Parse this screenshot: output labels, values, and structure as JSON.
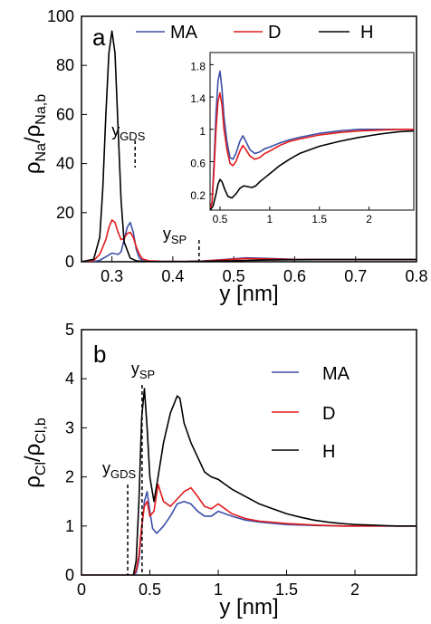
{
  "colors": {
    "MA": "#3b4ea6",
    "D": "#e31a1c",
    "H": "#000000"
  },
  "chart_data": [
    {
      "type": "line",
      "panel_label": "a",
      "xlabel": "y [nm]",
      "ylabel_main": "ρ",
      "ylabel_sub_num": "Na",
      "ylabel_sep": "/",
      "ylabel_sub_den": "Na,b",
      "xlim": [
        0.25,
        0.8
      ],
      "ylim": [
        0,
        100
      ],
      "xticks": [
        0.3,
        0.4,
        0.5,
        0.6,
        0.7,
        0.8
      ],
      "xtick_labels": [
        "0.3",
        "0.4",
        "0.5",
        "0.6",
        "0.7",
        "0.8"
      ],
      "yticks": [
        0,
        20,
        40,
        60,
        80,
        100
      ],
      "ytick_labels": [
        "0",
        "20",
        "40",
        "60",
        "80",
        "100"
      ],
      "legend": {
        "placement": "top",
        "entries": [
          "MA",
          "D",
          "H"
        ]
      },
      "annotations": [
        {
          "main": "y",
          "sub": "GDS",
          "x": 0.338
        },
        {
          "main": "y",
          "sub": "SP",
          "x": 0.443
        }
      ],
      "series": [
        {
          "name": "MA",
          "color_key": "MA",
          "x": [
            0.25,
            0.27,
            0.28,
            0.29,
            0.3,
            0.31,
            0.315,
            0.32,
            0.325,
            0.33,
            0.335,
            0.34,
            0.345,
            0.35,
            0.36,
            0.38,
            0.42,
            0.45,
            0.5,
            0.52,
            0.55,
            0.6,
            0.65,
            0.7,
            0.75,
            0.8
          ],
          "y": [
            0,
            0.1,
            0.6,
            2,
            3.5,
            3,
            4,
            9,
            14,
            16,
            12,
            5,
            1.5,
            0.5,
            0.2,
            0.1,
            0.1,
            0.3,
            1.2,
            1.6,
            1.4,
            1.0,
            0.9,
            0.9,
            0.9,
            0.9
          ]
        },
        {
          "name": "D",
          "color_key": "D",
          "x": [
            0.25,
            0.27,
            0.28,
            0.29,
            0.295,
            0.3,
            0.305,
            0.31,
            0.315,
            0.32,
            0.325,
            0.33,
            0.335,
            0.34,
            0.345,
            0.35,
            0.36,
            0.38,
            0.42,
            0.45,
            0.5,
            0.52,
            0.55,
            0.6,
            0.65,
            0.7,
            0.75,
            0.8
          ],
          "y": [
            0,
            0.5,
            3,
            9,
            14,
            17,
            16,
            12,
            9,
            9.5,
            11.5,
            12,
            10,
            6,
            3,
            1.2,
            0.4,
            0.2,
            0.1,
            0.3,
            1.0,
            1.3,
            1.2,
            0.9,
            0.9,
            0.9,
            0.9,
            0.9
          ]
        },
        {
          "name": "H",
          "color_key": "H",
          "x": [
            0.25,
            0.27,
            0.28,
            0.285,
            0.29,
            0.295,
            0.3,
            0.305,
            0.31,
            0.315,
            0.32,
            0.33,
            0.34,
            0.35,
            0.38,
            0.42,
            0.5,
            0.55,
            0.6,
            0.65,
            0.7,
            0.75,
            0.8
          ],
          "y": [
            0,
            1,
            10,
            30,
            60,
            85,
            94,
            85,
            55,
            25,
            8,
            1.5,
            0.4,
            0.1,
            0.05,
            0.05,
            0.4,
            0.7,
            0.8,
            0.9,
            0.9,
            0.9,
            0.9
          ]
        }
      ],
      "inset": {
        "xlim": [
          0.4,
          2.45
        ],
        "ylim": [
          0,
          1.95
        ],
        "xticks": [
          0.5,
          1.0,
          1.5,
          2.0
        ],
        "xtick_labels": [
          "0.5",
          "1",
          "1.5",
          "2"
        ],
        "yticks": [
          0.2,
          0.6,
          1.0,
          1.4,
          1.8
        ],
        "ytick_labels": [
          "0.2",
          "0.6",
          "1",
          "1.4",
          "1.8"
        ],
        "series": [
          {
            "name": "MA",
            "color_key": "MA",
            "x": [
              0.4,
              0.42,
              0.44,
              0.46,
              0.48,
              0.5,
              0.52,
              0.54,
              0.57,
              0.6,
              0.63,
              0.66,
              0.7,
              0.73,
              0.76,
              0.8,
              0.85,
              0.9,
              0.95,
              1.0,
              1.1,
              1.2,
              1.3,
              1.5,
              1.7,
              1.9,
              2.1,
              2.3,
              2.45
            ],
            "y": [
              0,
              0.1,
              0.6,
              1.2,
              1.6,
              1.72,
              1.5,
              1.15,
              0.85,
              0.65,
              0.63,
              0.7,
              0.85,
              0.92,
              0.85,
              0.75,
              0.7,
              0.72,
              0.76,
              0.78,
              0.83,
              0.87,
              0.9,
              0.95,
              0.98,
              1.0,
              1.0,
              1.0,
              1.0
            ]
          },
          {
            "name": "D",
            "color_key": "D",
            "x": [
              0.4,
              0.42,
              0.44,
              0.46,
              0.48,
              0.5,
              0.52,
              0.54,
              0.57,
              0.6,
              0.63,
              0.66,
              0.7,
              0.73,
              0.76,
              0.8,
              0.85,
              0.9,
              0.95,
              1.0,
              1.1,
              1.2,
              1.3,
              1.5,
              1.7,
              1.9,
              2.1,
              2.3,
              2.45
            ],
            "y": [
              0,
              0.1,
              0.5,
              1.0,
              1.35,
              1.45,
              1.3,
              1.0,
              0.75,
              0.58,
              0.55,
              0.6,
              0.73,
              0.8,
              0.75,
              0.67,
              0.63,
              0.65,
              0.7,
              0.73,
              0.8,
              0.85,
              0.88,
              0.93,
              0.96,
              0.98,
              0.99,
              1.0,
              1.0
            ]
          },
          {
            "name": "H",
            "color_key": "H",
            "x": [
              0.4,
              0.43,
              0.46,
              0.48,
              0.5,
              0.52,
              0.55,
              0.58,
              0.62,
              0.66,
              0.7,
              0.74,
              0.78,
              0.82,
              0.86,
              0.9,
              0.95,
              1.0,
              1.1,
              1.2,
              1.3,
              1.5,
              1.7,
              1.9,
              2.1,
              2.3,
              2.45
            ],
            "y": [
              0,
              0.05,
              0.2,
              0.32,
              0.38,
              0.35,
              0.25,
              0.17,
              0.15,
              0.2,
              0.27,
              0.3,
              0.29,
              0.28,
              0.3,
              0.35,
              0.4,
              0.45,
              0.55,
              0.63,
              0.7,
              0.79,
              0.85,
              0.9,
              0.94,
              0.97,
              0.98
            ]
          }
        ]
      }
    },
    {
      "type": "line",
      "panel_label": "b",
      "xlabel": "y [nm]",
      "ylabel_main": "ρ",
      "ylabel_sub_num": "Cl",
      "ylabel_sep": "/",
      "ylabel_sub_den": "Cl,b",
      "xlim": [
        0,
        2.45
      ],
      "ylim": [
        0,
        5
      ],
      "xticks": [
        0,
        0.5,
        1.0,
        1.5,
        2.0
      ],
      "xtick_labels": [
        "0",
        "0.5",
        "1",
        "1.5",
        "2"
      ],
      "yticks": [
        0,
        1,
        2,
        3,
        4,
        5
      ],
      "ytick_labels": [
        "0",
        "1",
        "2",
        "3",
        "4",
        "5"
      ],
      "legend": {
        "placement": "top-right",
        "entries": [
          "MA",
          "D",
          "H"
        ]
      },
      "annotations": [
        {
          "main": "y",
          "sub": "SP",
          "x": 0.443
        },
        {
          "main": "y",
          "sub": "GDS",
          "x": 0.338
        }
      ],
      "series": [
        {
          "name": "MA",
          "color_key": "MA",
          "x": [
            0,
            0.38,
            0.4,
            0.42,
            0.44,
            0.46,
            0.48,
            0.5,
            0.52,
            0.55,
            0.6,
            0.65,
            0.7,
            0.75,
            0.8,
            0.85,
            0.9,
            0.95,
            1.0,
            1.05,
            1.1,
            1.2,
            1.3,
            1.5,
            1.7,
            1.9,
            2.1,
            2.3,
            2.45
          ],
          "y": [
            0,
            0,
            0.05,
            0.3,
            0.9,
            1.5,
            1.7,
            1.3,
            0.95,
            0.85,
            1.0,
            1.2,
            1.45,
            1.5,
            1.45,
            1.3,
            1.2,
            1.2,
            1.3,
            1.25,
            1.2,
            1.12,
            1.08,
            1.03,
            1.01,
            1.0,
            1.0,
            1.0,
            1.0
          ]
        },
        {
          "name": "D",
          "color_key": "D",
          "x": [
            0,
            0.38,
            0.4,
            0.42,
            0.44,
            0.46,
            0.48,
            0.5,
            0.53,
            0.56,
            0.6,
            0.65,
            0.7,
            0.75,
            0.8,
            0.85,
            0.9,
            0.95,
            1.0,
            1.05,
            1.1,
            1.2,
            1.3,
            1.5,
            1.7,
            1.9,
            2.1,
            2.3,
            2.45
          ],
          "y": [
            0,
            0,
            0.1,
            0.4,
            1.0,
            1.4,
            1.5,
            1.2,
            1.3,
            1.85,
            1.5,
            1.4,
            1.55,
            1.7,
            1.78,
            1.6,
            1.4,
            1.35,
            1.45,
            1.35,
            1.25,
            1.15,
            1.1,
            1.05,
            1.02,
            1.0,
            1.0,
            1.0,
            1.0
          ]
        },
        {
          "name": "H",
          "color_key": "H",
          "x": [
            0,
            0.38,
            0.4,
            0.42,
            0.44,
            0.46,
            0.48,
            0.5,
            0.53,
            0.56,
            0.6,
            0.65,
            0.7,
            0.72,
            0.75,
            0.8,
            0.85,
            0.9,
            0.95,
            1.0,
            1.05,
            1.1,
            1.2,
            1.3,
            1.4,
            1.5,
            1.6,
            1.7,
            1.8,
            1.9,
            2.0,
            2.1,
            2.2,
            2.3,
            2.45
          ],
          "y": [
            0,
            0,
            0.3,
            1.5,
            3.2,
            3.8,
            3.0,
            2.0,
            1.5,
            2.0,
            2.7,
            3.3,
            3.65,
            3.6,
            3.1,
            2.7,
            2.4,
            2.1,
            2.0,
            1.95,
            1.85,
            1.75,
            1.6,
            1.45,
            1.35,
            1.25,
            1.18,
            1.12,
            1.08,
            1.05,
            1.03,
            1.02,
            1.01,
            1.0,
            1.0
          ]
        }
      ]
    }
  ]
}
